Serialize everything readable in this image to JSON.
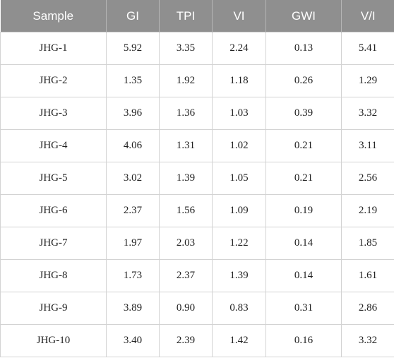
{
  "table": {
    "header": [
      "Sample",
      "GI",
      "TPI",
      "VI",
      "GWI",
      "V/I"
    ],
    "rows": [
      [
        "JHG-1",
        "5.92",
        "3.35",
        "2.24",
        "0.13",
        "5.41"
      ],
      [
        "JHG-2",
        "1.35",
        "1.92",
        "1.18",
        "0.26",
        "1.29"
      ],
      [
        "JHG-3",
        "3.96",
        "1.36",
        "1.03",
        "0.39",
        "3.32"
      ],
      [
        "JHG-4",
        "4.06",
        "1.31",
        "1.02",
        "0.21",
        "3.11"
      ],
      [
        "JHG-5",
        "3.02",
        "1.39",
        "1.05",
        "0.21",
        "2.56"
      ],
      [
        "JHG-6",
        "2.37",
        "1.56",
        "1.09",
        "0.19",
        "2.19"
      ],
      [
        "JHG-7",
        "1.97",
        "2.03",
        "1.22",
        "0.14",
        "1.85"
      ],
      [
        "JHG-8",
        "1.73",
        "2.37",
        "1.39",
        "0.14",
        "1.61"
      ],
      [
        "JHG-9",
        "3.89",
        "0.90",
        "0.83",
        "0.31",
        "2.86"
      ],
      [
        "JHG-10",
        "3.40",
        "2.39",
        "1.42",
        "0.16",
        "3.32"
      ]
    ]
  }
}
